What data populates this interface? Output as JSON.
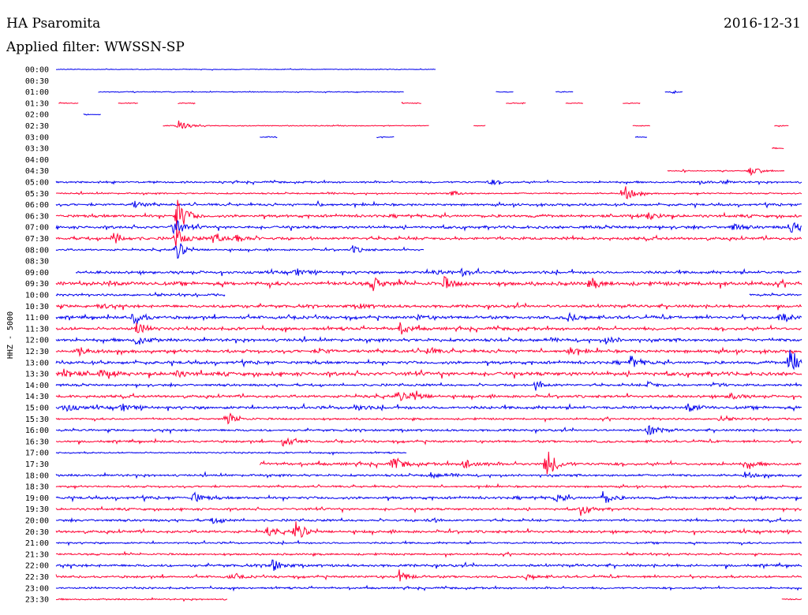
{
  "header": {
    "station": "HA Psaromita",
    "date": "2016-12-31",
    "filter_label": "Applied filter: WWSSN-SP"
  },
  "colors": {
    "blue": "#0000ee",
    "red": "#ff0033"
  },
  "chart_data": {
    "type": "line",
    "ylabel": "HHZ - 5000",
    "time_labels": [
      "00:00",
      "00:30",
      "01:00",
      "01:30",
      "02:00",
      "02:30",
      "03:00",
      "03:30",
      "04:00",
      "04:30",
      "05:00",
      "05:30",
      "06:00",
      "06:30",
      "07:00",
      "07:30",
      "08:00",
      "08:30",
      "09:00",
      "09:30",
      "10:00",
      "10:30",
      "11:00",
      "11:30",
      "12:00",
      "12:30",
      "13:00",
      "13:30",
      "14:00",
      "14:30",
      "15:00",
      "15:30",
      "16:00",
      "16:30",
      "17:00",
      "17:30",
      "18:00",
      "18:30",
      "19:00",
      "19:30",
      "20:00",
      "20:30",
      "21:00",
      "21:30",
      "22:00",
      "22:30",
      "23:00",
      "23:30"
    ],
    "x_range_minutes": [
      0,
      30
    ],
    "traces": [
      {
        "color": "blue",
        "segments": [
          [
            0,
            15.3
          ]
        ],
        "noise": 0.4,
        "events": []
      },
      {
        "color": "red",
        "segments": [],
        "noise": 0.4,
        "events": []
      },
      {
        "color": "blue",
        "segments": [
          [
            1.7,
            14.0
          ],
          [
            17.7,
            18.4
          ],
          [
            20.1,
            20.8
          ],
          [
            24.5,
            25.2
          ]
        ],
        "noise": 0.5,
        "events": [
          [
            24.8,
            2
          ]
        ]
      },
      {
        "color": "red",
        "segments": [
          [
            0.1,
            0.9
          ],
          [
            2.5,
            3.3
          ],
          [
            4.9,
            5.6
          ],
          [
            13.9,
            14.7
          ],
          [
            18.1,
            18.9
          ],
          [
            20.5,
            21.2
          ],
          [
            22.8,
            23.5
          ]
        ],
        "noise": 0.5,
        "events": []
      },
      {
        "color": "blue",
        "segments": [
          [
            1.1,
            1.8
          ]
        ],
        "noise": 0.5,
        "events": []
      },
      {
        "color": "red",
        "segments": [
          [
            4.3,
            15.0
          ],
          [
            16.8,
            17.3
          ],
          [
            23.2,
            23.9
          ],
          [
            28.9,
            29.5
          ]
        ],
        "noise": 0.5,
        "events": [
          [
            4.9,
            7
          ]
        ]
      },
      {
        "color": "blue",
        "segments": [
          [
            8.2,
            8.9
          ],
          [
            12.9,
            13.6
          ],
          [
            23.3,
            23.8
          ]
        ],
        "noise": 0.5,
        "events": []
      },
      {
        "color": "red",
        "segments": [
          [
            28.8,
            29.3
          ]
        ],
        "noise": 1,
        "events": []
      },
      {
        "color": "blue",
        "segments": [],
        "noise": 0.4,
        "events": []
      },
      {
        "color": "red",
        "segments": [
          [
            24.6,
            29.3
          ]
        ],
        "noise": 0.6,
        "events": [
          [
            27.9,
            6
          ]
        ]
      },
      {
        "color": "blue",
        "segments": [
          [
            0,
            30
          ]
        ],
        "noise": 1,
        "events": [
          [
            17.4,
            4
          ],
          [
            26.8,
            2
          ],
          [
            25.9,
            2
          ]
        ]
      },
      {
        "color": "red",
        "segments": [
          [
            0,
            30
          ]
        ],
        "noise": 0.8,
        "events": [
          [
            22.8,
            12
          ],
          [
            15.9,
            3
          ]
        ]
      },
      {
        "color": "blue",
        "segments": [
          [
            0,
            30
          ]
        ],
        "noise": 1.2,
        "events": [
          [
            3.1,
            5
          ],
          [
            10.5,
            2
          ]
        ]
      },
      {
        "color": "red",
        "segments": [
          [
            0,
            30
          ]
        ],
        "noise": 1.5,
        "events": [
          [
            4.8,
            28
          ],
          [
            23.8,
            6
          ]
        ]
      },
      {
        "color": "blue",
        "segments": [
          [
            0,
            30
          ]
        ],
        "noise": 1.5,
        "events": [
          [
            4.7,
            14
          ],
          [
            29.5,
            9
          ],
          [
            27.2,
            4
          ]
        ]
      },
      {
        "color": "red",
        "segments": [
          [
            0,
            30
          ]
        ],
        "noise": 1.5,
        "events": [
          [
            2.3,
            8
          ],
          [
            6.3,
            7
          ],
          [
            7.2,
            7
          ],
          [
            4.8,
            12
          ]
        ]
      },
      {
        "color": "blue",
        "segments": [
          [
            0,
            14.8
          ]
        ],
        "noise": 1,
        "events": [
          [
            11.9,
            5
          ],
          [
            4.8,
            14
          ]
        ]
      },
      {
        "color": "red",
        "segments": [],
        "noise": 0.4,
        "events": []
      },
      {
        "color": "blue",
        "segments": [
          [
            0.8,
            30
          ]
        ],
        "noise": 1.5,
        "events": [
          [
            9.6,
            5
          ],
          [
            15.2,
            5
          ],
          [
            16.3,
            5
          ]
        ]
      },
      {
        "color": "red",
        "segments": [
          [
            0,
            30
          ]
        ],
        "noise": 2,
        "events": [
          [
            12.7,
            9
          ],
          [
            15.6,
            8
          ],
          [
            21.5,
            7
          ],
          [
            2,
            4
          ]
        ]
      },
      {
        "color": "blue",
        "segments": [
          [
            0,
            6.8
          ],
          [
            27.9,
            30
          ]
        ],
        "noise": 1.2,
        "events": []
      },
      {
        "color": "red",
        "segments": [
          [
            0,
            30
          ]
        ],
        "noise": 1.6,
        "events": [
          [
            1.7,
            3
          ],
          [
            6.9,
            2
          ],
          [
            12.2,
            3
          ]
        ]
      },
      {
        "color": "blue",
        "segments": [
          [
            0,
            30
          ]
        ],
        "noise": 1.6,
        "events": [
          [
            3.1,
            10
          ],
          [
            20.6,
            6
          ],
          [
            29.1,
            8
          ],
          [
            14.5,
            3
          ]
        ]
      },
      {
        "color": "red",
        "segments": [
          [
            0,
            30
          ]
        ],
        "noise": 1.6,
        "events": [
          [
            3.2,
            9
          ],
          [
            13.8,
            8
          ]
        ]
      },
      {
        "color": "blue",
        "segments": [
          [
            0,
            30
          ]
        ],
        "noise": 1.6,
        "events": [
          [
            3.2,
            8
          ],
          [
            22.1,
            5
          ]
        ]
      },
      {
        "color": "red",
        "segments": [
          [
            0,
            30
          ]
        ],
        "noise": 1.6,
        "events": [
          [
            0.9,
            6
          ],
          [
            14.9,
            5
          ],
          [
            20.6,
            5
          ],
          [
            10.6,
            3
          ]
        ]
      },
      {
        "color": "blue",
        "segments": [
          [
            0,
            30
          ]
        ],
        "noise": 1.6,
        "events": [
          [
            23.1,
            8
          ],
          [
            29.5,
            24
          ]
        ]
      },
      {
        "color": "red",
        "segments": [
          [
            0,
            30
          ]
        ],
        "noise": 2,
        "events": [
          [
            0.3,
            6
          ],
          [
            1.7,
            6
          ],
          [
            4.8,
            4
          ]
        ]
      },
      {
        "color": "blue",
        "segments": [
          [
            0,
            30
          ]
        ],
        "noise": 1.2,
        "events": [
          [
            19.3,
            6
          ],
          [
            23.8,
            4
          ],
          [
            26.4,
            3
          ]
        ]
      },
      {
        "color": "red",
        "segments": [
          [
            0,
            30
          ]
        ],
        "noise": 1.4,
        "events": [
          [
            13.7,
            7
          ],
          [
            14.3,
            10
          ],
          [
            27.1,
            5
          ]
        ]
      },
      {
        "color": "blue",
        "segments": [
          [
            0,
            30
          ]
        ],
        "noise": 1.6,
        "events": [
          [
            0.3,
            6
          ],
          [
            2.6,
            5
          ],
          [
            12.0,
            4
          ],
          [
            25.4,
            7
          ]
        ]
      },
      {
        "color": "red",
        "segments": [
          [
            0,
            30
          ]
        ],
        "noise": 1,
        "events": [
          [
            6.9,
            8
          ],
          [
            26.6,
            4
          ]
        ]
      },
      {
        "color": "blue",
        "segments": [
          [
            0,
            30
          ]
        ],
        "noise": 1.2,
        "events": [
          [
            23.8,
            9
          ]
        ]
      },
      {
        "color": "red",
        "segments": [
          [
            0,
            30
          ]
        ],
        "noise": 1.2,
        "events": [
          [
            9.1,
            8
          ]
        ]
      },
      {
        "color": "blue",
        "segments": [
          [
            0,
            14.1
          ]
        ],
        "noise": 0.8,
        "events": []
      },
      {
        "color": "red",
        "segments": [
          [
            8.2,
            30
          ]
        ],
        "noise": 1.5,
        "events": [
          [
            13.5,
            10
          ],
          [
            16.4,
            9
          ],
          [
            19.7,
            22
          ],
          [
            27.7,
            6
          ]
        ]
      },
      {
        "color": "blue",
        "segments": [
          [
            0,
            30
          ]
        ],
        "noise": 1.2,
        "events": [
          [
            15.0,
            4
          ],
          [
            27.7,
            4
          ]
        ]
      },
      {
        "color": "red",
        "segments": [
          [
            0,
            30
          ]
        ],
        "noise": 1,
        "events": []
      },
      {
        "color": "blue",
        "segments": [
          [
            0,
            30
          ]
        ],
        "noise": 1.4,
        "events": [
          [
            5.5,
            8
          ],
          [
            20.1,
            6
          ],
          [
            22.0,
            9
          ]
        ]
      },
      {
        "color": "red",
        "segments": [
          [
            0,
            30
          ]
        ],
        "noise": 1.2,
        "events": [
          [
            21.1,
            8
          ]
        ]
      },
      {
        "color": "blue",
        "segments": [
          [
            0,
            30
          ]
        ],
        "noise": 1.2,
        "events": [
          [
            6.3,
            5
          ],
          [
            15.0,
            3
          ]
        ]
      },
      {
        "color": "red",
        "segments": [
          [
            0,
            30
          ]
        ],
        "noise": 1.4,
        "events": [
          [
            8.5,
            5
          ],
          [
            9.6,
            14
          ]
        ]
      },
      {
        "color": "blue",
        "segments": [
          [
            0,
            30
          ]
        ],
        "noise": 1,
        "events": []
      },
      {
        "color": "red",
        "segments": [
          [
            0,
            30
          ]
        ],
        "noise": 1,
        "events": []
      },
      {
        "color": "blue",
        "segments": [
          [
            0,
            30
          ]
        ],
        "noise": 1.4,
        "events": [
          [
            8.6,
            12
          ]
        ]
      },
      {
        "color": "red",
        "segments": [
          [
            0,
            30
          ]
        ],
        "noise": 1.2,
        "events": [
          [
            7.0,
            4
          ],
          [
            13.8,
            8
          ],
          [
            18.9,
            4
          ]
        ]
      },
      {
        "color": "blue",
        "segments": [
          [
            0,
            30
          ]
        ],
        "noise": 1,
        "events": []
      },
      {
        "color": "red",
        "segments": [
          [
            0,
            6.9
          ],
          [
            29.2,
            30
          ]
        ],
        "noise": 0.8,
        "events": []
      }
    ]
  }
}
